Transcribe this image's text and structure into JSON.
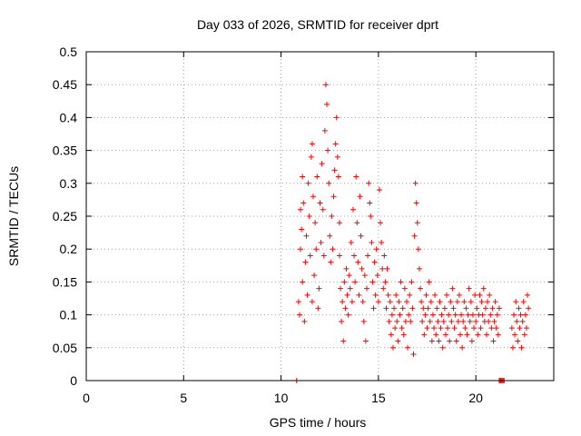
{
  "chart_data": {
    "type": "scatter",
    "title": "Day 033 of 2026, SRMTID for receiver dprt",
    "xlabel": "GPS time / hours",
    "ylabel": "SRMTID / TECUs",
    "xlim": [
      0,
      24
    ],
    "ylim": [
      0,
      0.5
    ],
    "x_ticks": [
      0,
      5,
      10,
      15,
      20
    ],
    "x_tick_labels": [
      "0",
      "5",
      "10",
      "15",
      "20"
    ],
    "y_ticks": [
      0,
      0.05,
      0.1,
      0.15,
      0.2,
      0.25,
      0.3,
      0.35,
      0.4,
      0.45,
      0.5
    ],
    "y_tick_labels": [
      "0",
      "0.05",
      "0.1",
      "0.15",
      "0.2",
      "0.25",
      "0.3",
      "0.35",
      "0.4",
      "0.45",
      "0.5"
    ],
    "grid": true,
    "marker": "+",
    "color": "#ff0000",
    "series": [
      {
        "name": "SRMTID",
        "points": [
          [
            10.8,
            0.0
          ],
          [
            21.2,
            0.0
          ],
          [
            21.25,
            0.0
          ],
          [
            21.3,
            0.0
          ],
          [
            21.35,
            0.0
          ],
          [
            21.4,
            0.0
          ],
          [
            21.45,
            0.0
          ],
          [
            10.9,
            0.12
          ],
          [
            10.95,
            0.1
          ],
          [
            11.0,
            0.2
          ],
          [
            11.0,
            0.26
          ],
          [
            11.05,
            0.23
          ],
          [
            11.1,
            0.31
          ],
          [
            11.1,
            0.15
          ],
          [
            11.15,
            0.27
          ],
          [
            11.2,
            0.09
          ],
          [
            11.25,
            0.18
          ],
          [
            11.3,
            0.22
          ],
          [
            11.35,
            0.13
          ],
          [
            11.4,
            0.3
          ],
          [
            11.45,
            0.25
          ],
          [
            11.5,
            0.19
          ],
          [
            11.55,
            0.34
          ],
          [
            11.6,
            0.36
          ],
          [
            11.6,
            0.12
          ],
          [
            11.65,
            0.28
          ],
          [
            11.7,
            0.16
          ],
          [
            11.75,
            0.24
          ],
          [
            11.8,
            0.2
          ],
          [
            11.85,
            0.31
          ],
          [
            11.9,
            0.11
          ],
          [
            11.95,
            0.14
          ],
          [
            12.0,
            0.27
          ],
          [
            12.05,
            0.21
          ],
          [
            12.1,
            0.33
          ],
          [
            12.15,
            0.26
          ],
          [
            12.2,
            0.19
          ],
          [
            12.25,
            0.38
          ],
          [
            12.3,
            0.45
          ],
          [
            12.35,
            0.42
          ],
          [
            12.4,
            0.35
          ],
          [
            12.45,
            0.3
          ],
          [
            12.5,
            0.22
          ],
          [
            12.55,
            0.18
          ],
          [
            12.6,
            0.25
          ],
          [
            12.65,
            0.2
          ],
          [
            12.7,
            0.28
          ],
          [
            12.75,
            0.32
          ],
          [
            12.8,
            0.36
          ],
          [
            12.85,
            0.4
          ],
          [
            12.9,
            0.34
          ],
          [
            12.95,
            0.31
          ],
          [
            13.0,
            0.24
          ],
          [
            13.0,
            0.19
          ],
          [
            13.05,
            0.14
          ],
          [
            13.1,
            0.09
          ],
          [
            13.15,
            0.12
          ],
          [
            13.2,
            0.06
          ],
          [
            13.25,
            0.15
          ],
          [
            13.3,
            0.11
          ],
          [
            13.35,
            0.17
          ],
          [
            13.4,
            0.13
          ],
          [
            13.45,
            0.1
          ],
          [
            13.5,
            0.16
          ],
          [
            13.55,
            0.14
          ],
          [
            13.6,
            0.21
          ],
          [
            13.65,
            0.12
          ],
          [
            13.7,
            0.26
          ],
          [
            13.75,
            0.19
          ],
          [
            13.8,
            0.15
          ],
          [
            13.85,
            0.31
          ],
          [
            13.9,
            0.24
          ],
          [
            13.95,
            0.18
          ],
          [
            14.0,
            0.13
          ],
          [
            14.05,
            0.28
          ],
          [
            14.1,
            0.22
          ],
          [
            14.15,
            0.17
          ],
          [
            14.2,
            0.12
          ],
          [
            14.25,
            0.09
          ],
          [
            14.3,
            0.16
          ],
          [
            14.35,
            0.06
          ],
          [
            14.4,
            0.14
          ],
          [
            14.45,
            0.19
          ],
          [
            14.5,
            0.3
          ],
          [
            14.55,
            0.27
          ],
          [
            14.6,
            0.25
          ],
          [
            14.65,
            0.21
          ],
          [
            14.7,
            0.15
          ],
          [
            14.75,
            0.11
          ],
          [
            14.8,
            0.18
          ],
          [
            14.85,
            0.13
          ],
          [
            14.9,
            0.2
          ],
          [
            14.95,
            0.16
          ],
          [
            15.0,
            0.12
          ],
          [
            15.05,
            0.29
          ],
          [
            15.1,
            0.24
          ],
          [
            15.15,
            0.21
          ],
          [
            15.2,
            0.17
          ],
          [
            15.25,
            0.14
          ],
          [
            15.3,
            0.19
          ],
          [
            15.35,
            0.15
          ],
          [
            15.4,
            0.11
          ],
          [
            15.45,
            0.17
          ],
          [
            15.5,
            0.13
          ],
          [
            15.55,
            0.09
          ],
          [
            15.6,
            0.12
          ],
          [
            15.65,
            0.07
          ],
          [
            15.7,
            0.1
          ],
          [
            15.75,
            0.05
          ],
          [
            15.8,
            0.11
          ],
          [
            15.85,
            0.08
          ],
          [
            15.9,
            0.13
          ],
          [
            15.95,
            0.09
          ],
          [
            16.0,
            0.06
          ],
          [
            16.05,
            0.12
          ],
          [
            16.1,
            0.1
          ],
          [
            16.15,
            0.15
          ],
          [
            16.2,
            0.08
          ],
          [
            16.25,
            0.11
          ],
          [
            16.3,
            0.07
          ],
          [
            16.35,
            0.14
          ],
          [
            16.4,
            0.09
          ],
          [
            16.45,
            0.12
          ],
          [
            16.5,
            0.05
          ],
          [
            16.55,
            0.1
          ],
          [
            16.6,
            0.13
          ],
          [
            16.65,
            0.09
          ],
          [
            16.7,
            0.15
          ],
          [
            16.75,
            0.11
          ],
          [
            16.8,
            0.04
          ],
          [
            16.85,
            0.22
          ],
          [
            16.9,
            0.3
          ],
          [
            16.95,
            0.27
          ],
          [
            17.0,
            0.24
          ],
          [
            17.05,
            0.2
          ],
          [
            17.1,
            0.17
          ],
          [
            17.15,
            0.14
          ],
          [
            17.2,
            0.12
          ],
          [
            17.25,
            0.09
          ],
          [
            17.3,
            0.11
          ],
          [
            17.35,
            0.07
          ],
          [
            17.4,
            0.1
          ],
          [
            17.45,
            0.13
          ],
          [
            17.5,
            0.08
          ],
          [
            17.55,
            0.11
          ],
          [
            17.6,
            0.15
          ],
          [
            17.65,
            0.09
          ],
          [
            17.7,
            0.12
          ],
          [
            17.75,
            0.06
          ],
          [
            17.8,
            0.1
          ],
          [
            17.85,
            0.08
          ],
          [
            17.9,
            0.13
          ],
          [
            17.95,
            0.07
          ],
          [
            18.0,
            0.11
          ],
          [
            18.05,
            0.09
          ],
          [
            18.1,
            0.06
          ],
          [
            18.15,
            0.12
          ],
          [
            18.2,
            0.08
          ],
          [
            18.25,
            0.1
          ],
          [
            18.3,
            0.05
          ],
          [
            18.35,
            0.09
          ],
          [
            18.4,
            0.11
          ],
          [
            18.45,
            0.07
          ],
          [
            18.5,
            0.13
          ],
          [
            18.55,
            0.08
          ],
          [
            18.6,
            0.1
          ],
          [
            18.65,
            0.06
          ],
          [
            18.7,
            0.12
          ],
          [
            18.75,
            0.09
          ],
          [
            18.8,
            0.14
          ],
          [
            18.85,
            0.11
          ],
          [
            18.9,
            0.08
          ],
          [
            18.95,
            0.1
          ],
          [
            19.0,
            0.06
          ],
          [
            19.05,
            0.12
          ],
          [
            19.1,
            0.09
          ],
          [
            19.15,
            0.13
          ],
          [
            19.2,
            0.07
          ],
          [
            19.25,
            0.1
          ],
          [
            19.3,
            0.05
          ],
          [
            19.35,
            0.09
          ],
          [
            19.4,
            0.12
          ],
          [
            19.45,
            0.08
          ],
          [
            19.5,
            0.11
          ],
          [
            19.55,
            0.07
          ],
          [
            19.6,
            0.1
          ],
          [
            19.65,
            0.14
          ],
          [
            19.7,
            0.09
          ],
          [
            19.75,
            0.12
          ],
          [
            19.8,
            0.06
          ],
          [
            19.85,
            0.1
          ],
          [
            19.9,
            0.08
          ],
          [
            19.95,
            0.13
          ],
          [
            20.0,
            0.09
          ],
          [
            20.05,
            0.11
          ],
          [
            20.1,
            0.07
          ],
          [
            20.15,
            0.1
          ],
          [
            20.2,
            0.13
          ],
          [
            20.25,
            0.08
          ],
          [
            20.3,
            0.12
          ],
          [
            20.35,
            0.1
          ],
          [
            20.4,
            0.14
          ],
          [
            20.45,
            0.09
          ],
          [
            20.5,
            0.11
          ],
          [
            20.55,
            0.07
          ],
          [
            20.6,
            0.12
          ],
          [
            20.65,
            0.09
          ],
          [
            20.7,
            0.13
          ],
          [
            20.75,
            0.1
          ],
          [
            20.8,
            0.08
          ],
          [
            20.85,
            0.11
          ],
          [
            20.9,
            0.06
          ],
          [
            20.95,
            0.09
          ],
          [
            21.0,
            0.12
          ],
          [
            21.05,
            0.08
          ],
          [
            21.1,
            0.1
          ],
          [
            21.15,
            0.07
          ],
          [
            21.2,
            0.11
          ],
          [
            21.85,
            0.08
          ],
          [
            21.9,
            0.05
          ],
          [
            21.95,
            0.1
          ],
          [
            22.0,
            0.07
          ],
          [
            22.05,
            0.12
          ],
          [
            22.1,
            0.09
          ],
          [
            22.15,
            0.06
          ],
          [
            22.2,
            0.11
          ],
          [
            22.25,
            0.08
          ],
          [
            22.3,
            0.1
          ],
          [
            22.35,
            0.05
          ],
          [
            22.4,
            0.09
          ],
          [
            22.45,
            0.12
          ],
          [
            22.5,
            0.07
          ],
          [
            22.55,
            0.1
          ],
          [
            22.6,
            0.08
          ],
          [
            22.65,
            0.13
          ],
          [
            22.7,
            0.11
          ]
        ]
      }
    ]
  }
}
